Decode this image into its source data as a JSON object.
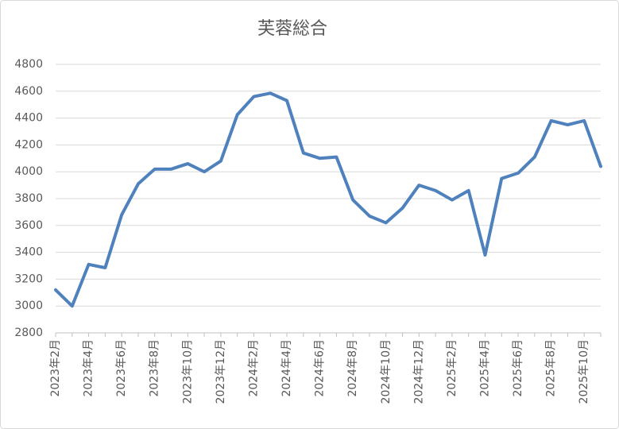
{
  "chart_data": {
    "type": "line",
    "title": "芙蓉総合",
    "categories": [
      "2023年2月",
      null,
      "2023年4月",
      null,
      "2023年6月",
      null,
      "2023年8月",
      null,
      "2023年10月",
      null,
      "2023年12月",
      null,
      "2024年2月",
      null,
      "2024年4月",
      null,
      "2024年6月",
      null,
      "2024年8月",
      null,
      "2024年10月",
      null,
      "2024年12月",
      null,
      "2025年2月",
      null,
      "2025年4月",
      null,
      "2025年6月",
      null,
      "2025年8月",
      null,
      "2025年10月",
      null
    ],
    "series": [
      {
        "name": "芙蓉総合",
        "color": "#4f81bd",
        "values": [
          3120,
          3000,
          3310,
          3285,
          3680,
          3910,
          4020,
          4020,
          4060,
          4000,
          4080,
          4425,
          4560,
          4585,
          4530,
          4140,
          4100,
          4110,
          3790,
          3670,
          3620,
          3730,
          3900,
          3860,
          3790,
          3860,
          3380,
          3950,
          3990,
          4110,
          4380,
          4350,
          4380,
          4040
        ]
      }
    ],
    "ylim": [
      2800,
      4800
    ],
    "yticks": [
      2800,
      3000,
      3200,
      3400,
      3600,
      3800,
      4000,
      4200,
      4400,
      4600,
      4800
    ],
    "grid": true
  }
}
